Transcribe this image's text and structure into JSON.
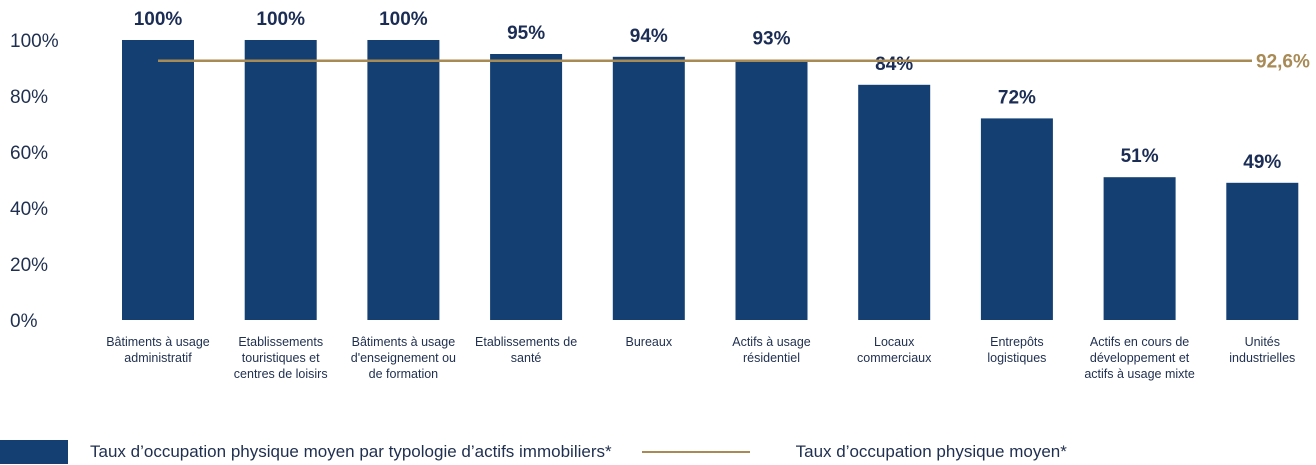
{
  "chart_data": {
    "type": "bar",
    "categories": [
      [
        "Bâtiments à usage",
        "administratif"
      ],
      [
        "Etablissements",
        "touristiques et",
        "centres de loisirs"
      ],
      [
        "Bâtiments à usage",
        "d'enseignement ou",
        "de formation"
      ],
      [
        "Etablissements de",
        "santé"
      ],
      [
        "Bureaux"
      ],
      [
        "Actifs à usage",
        "résidentiel"
      ],
      [
        "Locaux",
        "commerciaux"
      ],
      [
        "Entrepôts",
        "logistiques"
      ],
      [
        "Actifs en cours de",
        "développement et",
        "actifs à usage mixte"
      ],
      [
        "Unités",
        "industrielles"
      ]
    ],
    "values": [
      100,
      100,
      100,
      95,
      94,
      93,
      84,
      72,
      51,
      49
    ],
    "value_labels": [
      "100%",
      "100%",
      "100%",
      "95%",
      "94%",
      "93%",
      "84%",
      "72%",
      "51%",
      "49%"
    ],
    "average": 92.6,
    "average_label": "92,6%",
    "yticks": [
      "0%",
      "20%",
      "40%",
      "60%",
      "80%",
      "100%"
    ],
    "ylim": [
      0,
      100
    ],
    "grid": false,
    "legend_position": "bottom",
    "colors": {
      "bar": "#133f73",
      "average_line": "#a88a55",
      "text": "#1f2f4f"
    }
  },
  "legend": {
    "bars_label": "Taux d’occupation physique moyen par typologie d’actifs immobiliers*",
    "line_label": "Taux d’occupation physique moyen*"
  }
}
